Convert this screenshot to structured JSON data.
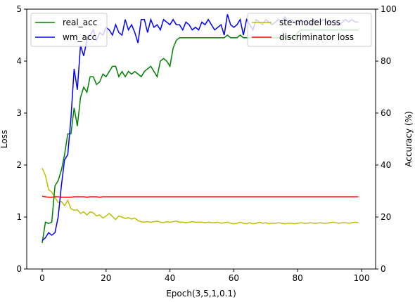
{
  "chart_data": {
    "type": "line",
    "xlabel": "Epoch(3,5,1,0.1)",
    "ylabel_left": "Loss",
    "ylabel_right": "Accuracy (%)",
    "xlim": [
      0,
      99
    ],
    "ylim_left": [
      0,
      5
    ],
    "ylim_right": [
      0,
      100
    ],
    "xticks": [
      0,
      20,
      40,
      60,
      80,
      100
    ],
    "yticks_left": [
      0,
      1,
      2,
      3,
      4,
      5
    ],
    "yticks_right": [
      0,
      20,
      40,
      60,
      80,
      100
    ],
    "grid": false,
    "legends": [
      {
        "placement": "upper-left",
        "entries": [
          "real_acc",
          "wm_acc"
        ]
      },
      {
        "placement": "upper-right",
        "entries": [
          "ste-model loss",
          "discriminator loss"
        ]
      }
    ],
    "series": [
      {
        "name": "ste-model loss",
        "axis": "left",
        "color": "#bfbf00",
        "x": [
          0,
          1,
          2,
          3,
          4,
          5,
          6,
          7,
          8,
          9,
          10,
          11,
          12,
          13,
          14,
          15,
          16,
          17,
          18,
          19,
          20,
          21,
          22,
          23,
          24,
          25,
          26,
          27,
          28,
          29,
          30,
          31,
          32,
          33,
          34,
          35,
          36,
          37,
          38,
          39,
          40,
          41,
          42,
          43,
          44,
          45,
          46,
          47,
          48,
          49,
          50,
          51,
          52,
          53,
          54,
          55,
          56,
          57,
          58,
          59,
          60,
          61,
          62,
          63,
          64,
          65,
          66,
          67,
          68,
          69,
          70,
          71,
          72,
          73,
          74,
          75,
          76,
          77,
          78,
          79,
          80,
          81,
          82,
          83,
          84,
          85,
          86,
          87,
          88,
          89,
          90,
          91,
          92,
          93,
          94,
          95,
          96,
          97,
          98,
          99
        ],
        "y": [
          1.94,
          1.8,
          1.53,
          1.48,
          1.38,
          1.28,
          1.3,
          1.22,
          1.32,
          1.16,
          1.13,
          1.14,
          1.07,
          1.1,
          1.04,
          1.1,
          1.08,
          1.02,
          1.04,
          0.98,
          1.02,
          1.07,
          1.01,
          0.95,
          1.02,
          1.0,
          0.97,
          0.99,
          0.96,
          0.98,
          0.93,
          0.91,
          0.9,
          0.91,
          0.9,
          0.91,
          0.92,
          0.9,
          0.89,
          0.91,
          0.9,
          0.91,
          0.92,
          0.9,
          0.9,
          0.89,
          0.9,
          0.91,
          0.9,
          0.9,
          0.9,
          0.89,
          0.9,
          0.89,
          0.89,
          0.9,
          0.88,
          0.89,
          0.9,
          0.88,
          0.87,
          0.88,
          0.9,
          0.88,
          0.87,
          0.89,
          0.87,
          0.88,
          0.9,
          0.88,
          0.89,
          0.87,
          0.88,
          0.88,
          0.89,
          0.88,
          0.87,
          0.88,
          0.88,
          0.87,
          0.88,
          0.89,
          0.88,
          0.88,
          0.89,
          0.88,
          0.88,
          0.89,
          0.88,
          0.88,
          0.89,
          0.9,
          0.89,
          0.88,
          0.89,
          0.89,
          0.88,
          0.89,
          0.9,
          0.89
        ]
      },
      {
        "name": "discriminator loss",
        "axis": "left",
        "color": "#ff0000",
        "x": [
          0,
          1,
          2,
          3,
          4,
          5,
          6,
          7,
          8,
          9,
          10,
          11,
          12,
          13,
          14,
          15,
          16,
          17,
          18,
          19,
          20,
          21,
          22,
          23,
          24,
          25,
          26,
          27,
          28,
          29,
          30,
          31,
          32,
          33,
          34,
          35,
          36,
          37,
          38,
          39,
          40,
          41,
          42,
          43,
          44,
          45,
          46,
          47,
          48,
          49,
          50,
          51,
          52,
          53,
          54,
          55,
          56,
          57,
          58,
          59,
          60,
          61,
          62,
          63,
          64,
          65,
          66,
          67,
          68,
          69,
          70,
          71,
          72,
          73,
          74,
          75,
          76,
          77,
          78,
          79,
          80,
          81,
          82,
          83,
          84,
          85,
          86,
          87,
          88,
          89,
          90,
          91,
          92,
          93,
          94,
          95,
          96,
          97,
          98,
          99
        ],
        "y": [
          1.4,
          1.39,
          1.38,
          1.38,
          1.39,
          1.39,
          1.38,
          1.38,
          1.38,
          1.38,
          1.39,
          1.39,
          1.39,
          1.39,
          1.38,
          1.39,
          1.39,
          1.39,
          1.38,
          1.39,
          1.39,
          1.39,
          1.39,
          1.39,
          1.39,
          1.39,
          1.39,
          1.39,
          1.39,
          1.39,
          1.39,
          1.39,
          1.39,
          1.39,
          1.39,
          1.39,
          1.39,
          1.39,
          1.39,
          1.39,
          1.39,
          1.39,
          1.39,
          1.39,
          1.39,
          1.39,
          1.39,
          1.39,
          1.39,
          1.39,
          1.39,
          1.39,
          1.39,
          1.39,
          1.39,
          1.39,
          1.39,
          1.39,
          1.39,
          1.39,
          1.39,
          1.39,
          1.39,
          1.39,
          1.39,
          1.39,
          1.39,
          1.39,
          1.39,
          1.39,
          1.39,
          1.39,
          1.39,
          1.39,
          1.39,
          1.39,
          1.39,
          1.39,
          1.39,
          1.39,
          1.39,
          1.39,
          1.39,
          1.39,
          1.39,
          1.39,
          1.39,
          1.39,
          1.39,
          1.39,
          1.39,
          1.39,
          1.39,
          1.39,
          1.39,
          1.39,
          1.39,
          1.39,
          1.39,
          1.39
        ]
      },
      {
        "name": "real_acc",
        "axis": "right",
        "color": "#008000",
        "x": [
          0,
          1,
          2,
          3,
          4,
          5,
          6,
          7,
          8,
          9,
          10,
          11,
          12,
          13,
          14,
          15,
          16,
          17,
          18,
          19,
          20,
          21,
          22,
          23,
          24,
          25,
          26,
          27,
          28,
          29,
          30,
          31,
          32,
          33,
          34,
          35,
          36,
          37,
          38,
          39,
          40,
          41,
          42,
          43,
          44,
          45,
          46,
          47,
          48,
          49,
          50,
          51,
          52,
          53,
          54,
          55,
          56,
          57,
          58,
          59,
          60,
          61,
          62,
          63,
          64,
          65,
          66,
          67,
          68,
          69,
          70,
          71,
          72,
          73,
          74,
          75,
          76,
          77,
          78,
          79,
          80,
          81,
          82,
          83,
          84,
          85,
          86,
          87,
          88,
          89,
          90,
          91,
          92,
          93,
          94,
          95,
          96,
          97,
          98,
          99
        ],
        "y": [
          10,
          18,
          17.5,
          18,
          32,
          34,
          38,
          44,
          52,
          52,
          62,
          55,
          66,
          70,
          68,
          74,
          74,
          71,
          72,
          75,
          74,
          76,
          78,
          78,
          74,
          76,
          74,
          76,
          75,
          76,
          75,
          74,
          76,
          77,
          78,
          76,
          74,
          80,
          81,
          80,
          78,
          85,
          88,
          89,
          89,
          89,
          89,
          89,
          89,
          89,
          89,
          89,
          89,
          89,
          89,
          89,
          89,
          89,
          90,
          89,
          89,
          89,
          90,
          89,
          89,
          89,
          89,
          89,
          89,
          89,
          89,
          89,
          89,
          89,
          89,
          89,
          89,
          89,
          89,
          89,
          91,
          92,
          92,
          92,
          92,
          92,
          92,
          92,
          92,
          92,
          92,
          92,
          92,
          92,
          92,
          92,
          92,
          92,
          92,
          92
        ]
      },
      {
        "name": "wm_acc",
        "axis": "right",
        "color": "#0000ff",
        "x": [
          0,
          1,
          2,
          3,
          4,
          5,
          6,
          7,
          8,
          9,
          10,
          11,
          12,
          13,
          14,
          15,
          16,
          17,
          18,
          19,
          20,
          21,
          22,
          23,
          24,
          25,
          26,
          27,
          28,
          29,
          30,
          31,
          32,
          33,
          34,
          35,
          36,
          37,
          38,
          39,
          40,
          41,
          42,
          43,
          44,
          45,
          46,
          47,
          48,
          49,
          50,
          51,
          52,
          53,
          54,
          55,
          56,
          57,
          58,
          59,
          60,
          61,
          62,
          63,
          64,
          65,
          66,
          67,
          68,
          69,
          70,
          71,
          72,
          73,
          74,
          75,
          76,
          77,
          78,
          79,
          80,
          81,
          82,
          83,
          84,
          85,
          86,
          87,
          88,
          89,
          90,
          91,
          92,
          93,
          94,
          95,
          96,
          97,
          98,
          99
        ],
        "y": [
          11,
          12,
          14,
          13,
          14,
          20,
          32,
          42,
          44,
          58,
          77,
          69,
          86,
          82,
          88,
          90,
          92,
          88,
          91,
          90,
          93,
          92,
          90,
          94,
          91,
          90,
          96,
          92,
          94,
          91,
          87,
          96,
          96,
          91,
          96,
          93,
          94,
          92,
          96,
          95,
          94,
          96,
          94,
          94,
          92,
          95,
          94,
          92,
          93,
          92,
          95,
          94,
          96,
          94,
          92,
          93,
          94,
          90,
          98,
          94,
          93,
          94,
          96,
          90,
          96,
          94,
          92,
          96,
          95,
          94,
          96,
          95,
          94,
          95,
          96,
          95,
          97,
          95,
          96,
          95,
          94,
          96,
          95,
          95,
          94,
          96,
          95,
          95,
          96,
          95,
          95,
          95,
          95,
          94,
          95,
          96,
          95,
          96,
          95,
          95
        ]
      }
    ]
  }
}
